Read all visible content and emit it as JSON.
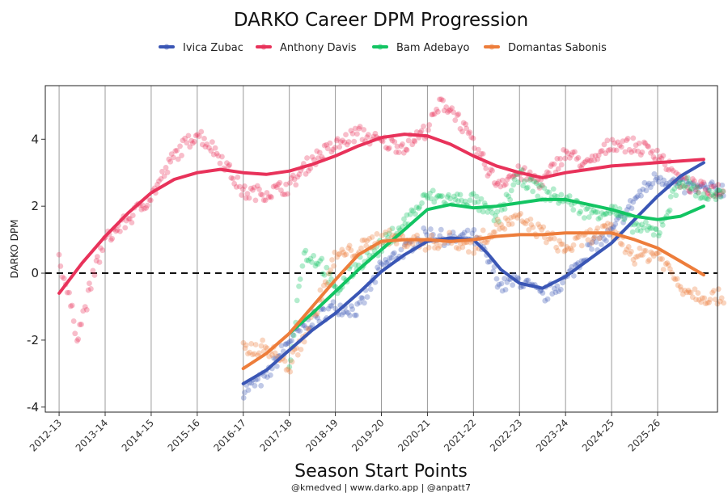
{
  "chart_data": {
    "type": "scatter",
    "title": "DARKO Career DPM Progression",
    "xlabel": "Season Start Points",
    "ylabel": "DARKO DPM",
    "caption": "@kmedved | www.darko.app | @anpatt7",
    "categories": [
      "2012-13",
      "2013-14",
      "2014-15",
      "2015-16",
      "2016-17",
      "2017-18",
      "2018-19",
      "2019-20",
      "2020-21",
      "2021-22",
      "2022-23",
      "2023-24",
      "2024-25",
      "2025-26"
    ],
    "xlim": [
      -0.3,
      14.3
    ],
    "ylim": [
      -4.15,
      5.6
    ],
    "y_ticks": [
      -4,
      -2,
      0,
      2,
      4
    ],
    "y_tick_labels": [
      "-4",
      "-2",
      "0",
      "2",
      "4"
    ],
    "reference_line": 0,
    "grid": "vertical lines at season starts",
    "legend_position": "top",
    "series": [
      {
        "name": "Ivica Zubac",
        "color": "#3a56b5",
        "start": 4.0,
        "end": 14.6,
        "trend": [
          [
            4.0,
            -3.3
          ],
          [
            4.5,
            -2.9
          ],
          [
            5.0,
            -2.3
          ],
          [
            5.5,
            -1.7
          ],
          [
            6.0,
            -1.2
          ],
          [
            6.5,
            -0.6
          ],
          [
            7.0,
            0.05
          ],
          [
            7.5,
            0.55
          ],
          [
            8.0,
            0.95
          ],
          [
            8.5,
            1.05
          ],
          [
            9.0,
            1.0
          ],
          [
            9.3,
            0.6
          ],
          [
            9.6,
            0.1
          ],
          [
            10.0,
            -0.3
          ],
          [
            10.5,
            -0.45
          ],
          [
            11.0,
            -0.1
          ],
          [
            11.5,
            0.4
          ],
          [
            12.0,
            0.9
          ],
          [
            12.5,
            1.6
          ],
          [
            13.0,
            2.3
          ],
          [
            13.5,
            2.9
          ],
          [
            14.0,
            3.3
          ]
        ],
        "raw": [
          [
            4.0,
            -3.5
          ],
          [
            4.5,
            -3.1
          ],
          [
            5.0,
            -2.0
          ],
          [
            5.5,
            -1.4
          ],
          [
            6.0,
            -1.0
          ],
          [
            6.5,
            -1.1
          ],
          [
            7.0,
            0.2
          ],
          [
            7.5,
            0.7
          ],
          [
            8.0,
            1.2
          ],
          [
            8.5,
            1.0
          ],
          [
            9.0,
            1.1
          ],
          [
            9.4,
            0.2
          ],
          [
            9.6,
            -0.4
          ],
          [
            10.0,
            -0.2
          ],
          [
            10.5,
            -0.7
          ],
          [
            11.0,
            -0.2
          ],
          [
            11.5,
            0.7
          ],
          [
            12.0,
            1.2
          ],
          [
            12.5,
            2.2
          ],
          [
            13.0,
            2.9
          ],
          [
            13.5,
            2.6
          ],
          [
            14.0,
            2.5
          ]
        ]
      },
      {
        "name": "Anthony Davis",
        "color": "#e8325a",
        "start": 0.0,
        "end": 14.6,
        "trend": [
          [
            0.0,
            -0.6
          ],
          [
            0.5,
            0.3
          ],
          [
            1.0,
            1.1
          ],
          [
            1.5,
            1.8
          ],
          [
            2.0,
            2.4
          ],
          [
            2.5,
            2.8
          ],
          [
            3.0,
            3.0
          ],
          [
            3.5,
            3.1
          ],
          [
            4.0,
            3.0
          ],
          [
            4.5,
            2.95
          ],
          [
            5.0,
            3.05
          ],
          [
            5.5,
            3.25
          ],
          [
            6.0,
            3.5
          ],
          [
            6.5,
            3.8
          ],
          [
            7.0,
            4.05
          ],
          [
            7.5,
            4.15
          ],
          [
            8.0,
            4.1
          ],
          [
            8.5,
            3.85
          ],
          [
            9.0,
            3.5
          ],
          [
            9.5,
            3.2
          ],
          [
            10.0,
            3.0
          ],
          [
            10.5,
            2.85
          ],
          [
            11.0,
            3.0
          ],
          [
            11.5,
            3.1
          ],
          [
            12.0,
            3.2
          ],
          [
            12.5,
            3.25
          ],
          [
            13.0,
            3.3
          ],
          [
            13.5,
            3.35
          ],
          [
            14.0,
            3.4
          ]
        ],
        "raw": [
          [
            0.0,
            0.5
          ],
          [
            0.4,
            -1.9
          ],
          [
            0.8,
            0.2
          ],
          [
            1.0,
            1.0
          ],
          [
            1.5,
            1.6
          ],
          [
            2.0,
            2.3
          ],
          [
            2.5,
            3.5
          ],
          [
            3.0,
            4.2
          ],
          [
            3.5,
            3.5
          ],
          [
            4.0,
            2.4
          ],
          [
            4.5,
            2.4
          ],
          [
            5.0,
            2.6
          ],
          [
            5.5,
            3.4
          ],
          [
            6.0,
            3.8
          ],
          [
            6.5,
            4.2
          ],
          [
            7.0,
            3.9
          ],
          [
            7.5,
            3.8
          ],
          [
            8.0,
            4.3
          ],
          [
            8.3,
            5.1
          ],
          [
            8.6,
            4.8
          ],
          [
            9.0,
            3.8
          ],
          [
            9.5,
            2.7
          ],
          [
            10.0,
            3.0
          ],
          [
            10.5,
            2.7
          ],
          [
            11.0,
            3.6
          ],
          [
            11.5,
            3.2
          ],
          [
            12.0,
            3.9
          ],
          [
            12.5,
            3.8
          ],
          [
            13.0,
            3.6
          ],
          [
            13.5,
            2.7
          ],
          [
            14.0,
            2.5
          ]
        ]
      },
      {
        "name": "Bam Adebayo",
        "color": "#12c462",
        "start": 5.0,
        "end": 14.6,
        "trend": [
          [
            5.0,
            -1.8
          ],
          [
            5.5,
            -1.2
          ],
          [
            6.0,
            -0.55
          ],
          [
            6.5,
            0.1
          ],
          [
            7.0,
            0.7
          ],
          [
            7.5,
            1.3
          ],
          [
            8.0,
            1.9
          ],
          [
            8.5,
            2.05
          ],
          [
            9.0,
            1.95
          ],
          [
            9.5,
            2.0
          ],
          [
            10.0,
            2.1
          ],
          [
            10.5,
            2.2
          ],
          [
            11.0,
            2.2
          ],
          [
            11.5,
            2.05
          ],
          [
            12.0,
            1.9
          ],
          [
            12.5,
            1.7
          ],
          [
            13.0,
            1.6
          ],
          [
            13.5,
            1.7
          ],
          [
            14.0,
            2.0
          ]
        ],
        "raw": [
          [
            5.0,
            -2.9
          ],
          [
            5.3,
            0.6
          ],
          [
            5.7,
            0.3
          ],
          [
            6.0,
            -0.6
          ],
          [
            6.5,
            0.3
          ],
          [
            7.0,
            0.8
          ],
          [
            7.5,
            1.5
          ],
          [
            8.0,
            2.3
          ],
          [
            8.5,
            2.2
          ],
          [
            9.0,
            2.2
          ],
          [
            9.5,
            1.6
          ],
          [
            10.0,
            2.9
          ],
          [
            10.5,
            2.4
          ],
          [
            11.0,
            2.2
          ],
          [
            11.5,
            1.8
          ],
          [
            12.0,
            1.9
          ],
          [
            12.5,
            1.4
          ],
          [
            13.0,
            1.2
          ],
          [
            13.5,
            2.8
          ],
          [
            14.0,
            2.3
          ]
        ]
      },
      {
        "name": "Domantas Sabonis",
        "color": "#ed7d3b",
        "start": 4.0,
        "end": 14.6,
        "trend": [
          [
            4.0,
            -2.85
          ],
          [
            4.5,
            -2.4
          ],
          [
            5.0,
            -1.8
          ],
          [
            5.5,
            -1.0
          ],
          [
            6.0,
            -0.2
          ],
          [
            6.5,
            0.55
          ],
          [
            7.0,
            0.95
          ],
          [
            7.5,
            1.0
          ],
          [
            8.0,
            1.0
          ],
          [
            8.5,
            0.95
          ],
          [
            9.0,
            1.0
          ],
          [
            9.5,
            1.1
          ],
          [
            10.0,
            1.15
          ],
          [
            10.5,
            1.15
          ],
          [
            11.0,
            1.2
          ],
          [
            11.5,
            1.2
          ],
          [
            12.0,
            1.2
          ],
          [
            12.5,
            1.0
          ],
          [
            13.0,
            0.75
          ],
          [
            13.5,
            0.35
          ],
          [
            14.0,
            -0.05
          ]
        ],
        "raw": [
          [
            4.0,
            -2.3
          ],
          [
            4.5,
            -2.2
          ],
          [
            5.0,
            -2.8
          ],
          [
            5.5,
            -1.4
          ],
          [
            6.0,
            0.5
          ],
          [
            6.5,
            0.7
          ],
          [
            7.0,
            1.1
          ],
          [
            7.5,
            1.0
          ],
          [
            8.0,
            0.9
          ],
          [
            8.5,
            1.0
          ],
          [
            9.0,
            0.8
          ],
          [
            9.5,
            1.4
          ],
          [
            10.0,
            1.6
          ],
          [
            10.5,
            1.2
          ],
          [
            11.0,
            0.7
          ],
          [
            11.5,
            1.1
          ],
          [
            12.0,
            1.3
          ],
          [
            12.5,
            0.5
          ],
          [
            13.0,
            0.6
          ],
          [
            13.5,
            -0.4
          ],
          [
            14.0,
            -0.7
          ]
        ]
      }
    ]
  }
}
